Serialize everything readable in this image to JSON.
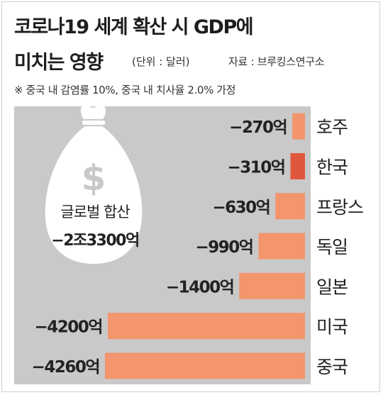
{
  "title_line1": "코로나19 세계 확산 시 GDP에",
  "title_line2": "미치는 영향",
  "unit": "(단위 : 달러)",
  "source": "자료 : 브루킹스연구소",
  "note": "※ 중국 내 감염률 10%, 중국 내 치사율 2.0% 가정",
  "total_label": "글로벌 합산",
  "total_value": "−2조3300억",
  "colors": {
    "panel": "#c9c9c9",
    "bar": "#f3956d",
    "bar_highlight": "#e0583c",
    "moneybag": "#ffffff"
  },
  "chart_data": {
    "type": "bar",
    "orientation": "horizontal",
    "unit": "달러",
    "categories": [
      "호주",
      "한국",
      "프랑스",
      "독일",
      "일본",
      "미국",
      "중국"
    ],
    "values": [
      -270,
      -310,
      -630,
      -990,
      -1400,
      -4200,
      -4260
    ],
    "value_labels": [
      "−270억",
      "−310억",
      "−630억",
      "−990억",
      "−1400억",
      "−4200억",
      "−4260억"
    ],
    "highlight": "한국"
  }
}
